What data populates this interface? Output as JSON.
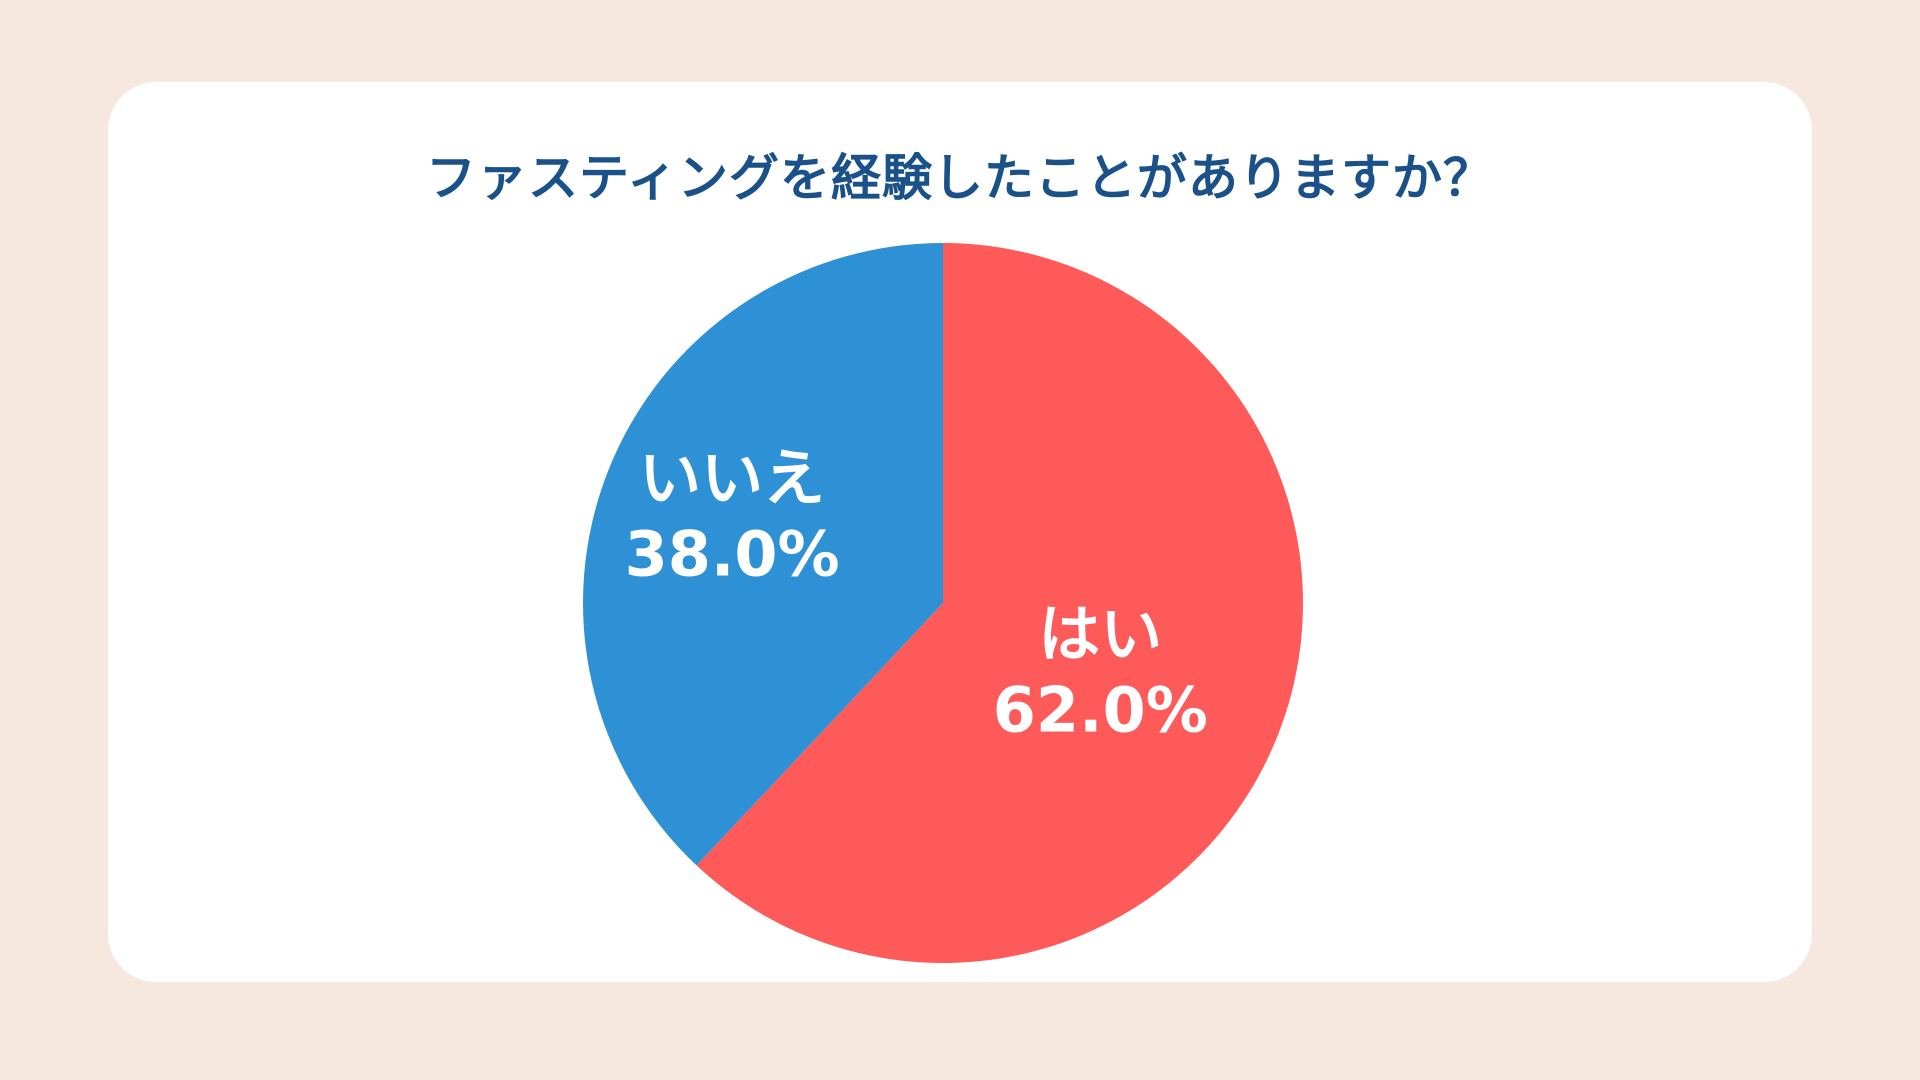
{
  "colors": {
    "background": "#f6e8df",
    "card": "#ffffff",
    "title": "#1a5189",
    "yes": "#ff5a5a",
    "no": "#2e91d5",
    "label": "#ffffff"
  },
  "chart_data": {
    "type": "pie",
    "title": "ファスティングを経験したことがありますか？",
    "slices": [
      {
        "label": "はい",
        "value": 62.0,
        "value_text": "62.0%",
        "color": "#ff5a5a"
      },
      {
        "label": "いいえ",
        "value": 38.0,
        "value_text": "38.0%",
        "color": "#2e91d5"
      }
    ],
    "start": "12 o'clock",
    "direction": "clockwise",
    "legend": "none"
  }
}
